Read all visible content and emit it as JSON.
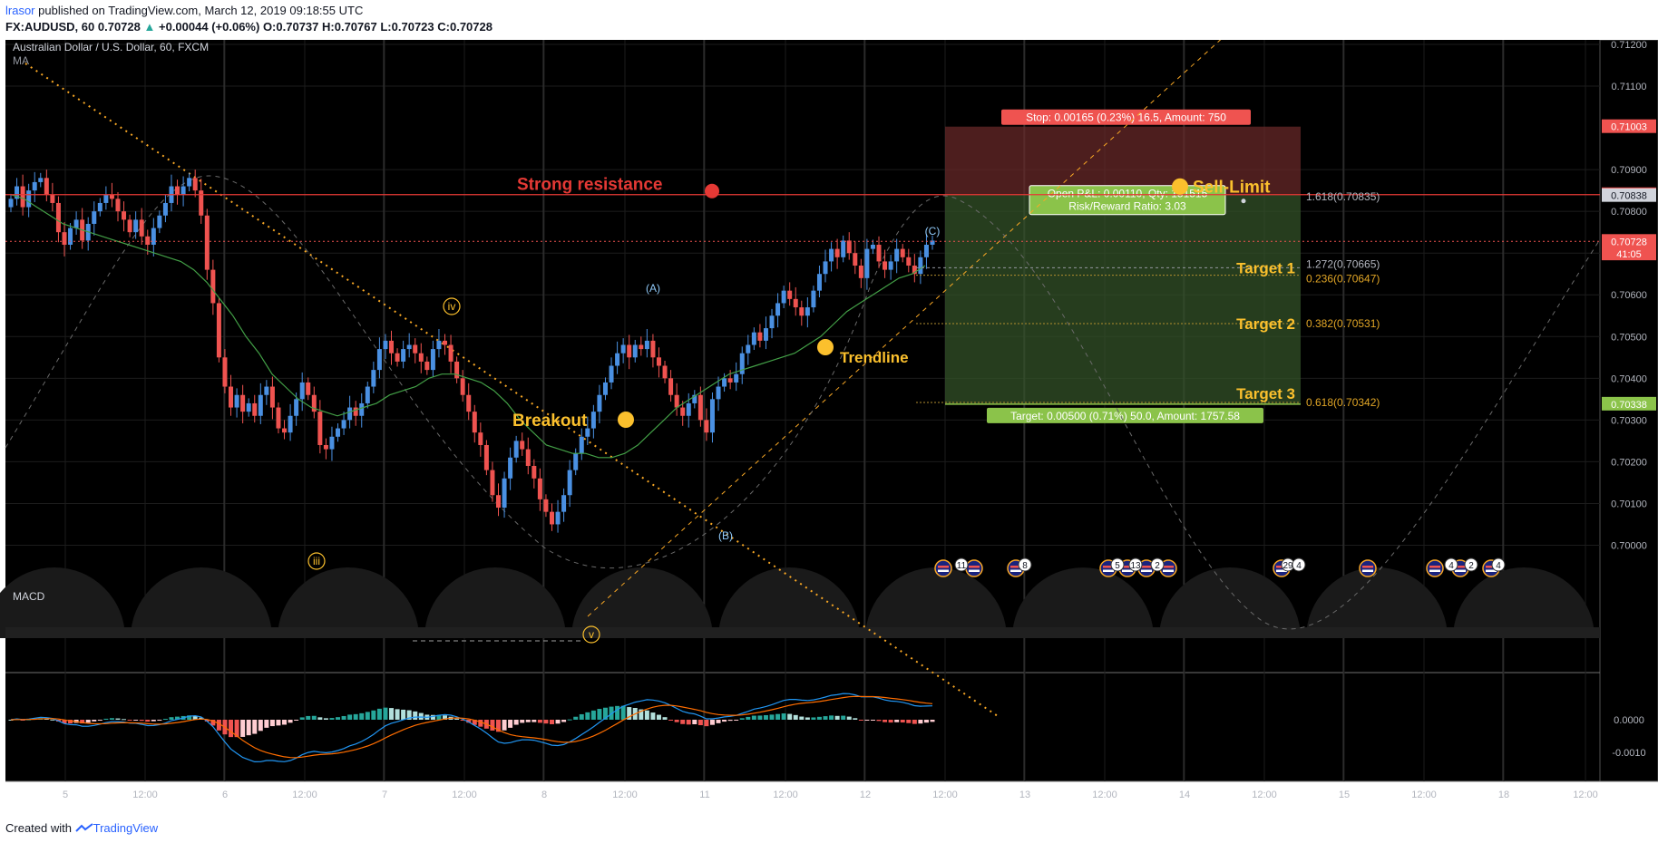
{
  "header": {
    "author": "lrasor",
    "published_text": " published on TradingView.com, March 12, 2019 09:18:55 UTC",
    "symbol": "FX:AUDUSD, 60",
    "price": "0.70728",
    "change": "+0.00044 (+0.06%)",
    "ohlc": [
      {
        "label": "O:",
        "value": "0.70737"
      },
      {
        "label": "H:",
        "value": "0.70767"
      },
      {
        "label": "L:",
        "value": "0.70723"
      },
      {
        "label": "C:",
        "value": "0.70728"
      }
    ]
  },
  "footer": {
    "created_with": "Created with",
    "brand": "TradingView"
  },
  "chart_data": {
    "type": "candlestick",
    "legend": "Australian Dollar / U.S. Dollar, 60, FXCM",
    "indicator": "MA",
    "ylim": [
      0.6993,
      0.7123
    ],
    "price_ticks": [
      "0.71200",
      "0.71100",
      "0.70900",
      "0.70800",
      "0.70700",
      "0.70600",
      "0.70500",
      "0.70400",
      "0.70300",
      "0.70200",
      "0.70100",
      "0.70000"
    ],
    "x_ticks": [
      "5",
      "12:00",
      "6",
      "12:00",
      "7",
      "12:00",
      "8",
      "12:00",
      "11",
      "12:00",
      "12",
      "12:00",
      "13",
      "12:00",
      "14",
      "12:00",
      "15",
      "12:00",
      "18",
      "12:00"
    ],
    "price_badges": [
      {
        "text": "0.71003",
        "y": 0.71003,
        "color": "#ef5350"
      },
      {
        "text": "0.70840",
        "y": 0.7084,
        "color": "#e53935"
      },
      {
        "text": "0.70838",
        "y": 0.70838,
        "color": "#d1d4dc"
      },
      {
        "text": "0.70728",
        "y": 0.70728,
        "color": "#ef5350"
      },
      {
        "text": "41:05",
        "y": 0.70698,
        "color": "#ef5350"
      },
      {
        "text": "0.70338",
        "y": 0.70338,
        "color": "#8bc34a"
      }
    ],
    "close_series": [
      0.7083,
      0.7086,
      0.7081,
      0.7085,
      0.7087,
      0.7088,
      0.7084,
      0.7082,
      0.7075,
      0.7072,
      0.7076,
      0.7078,
      0.7073,
      0.7077,
      0.708,
      0.7082,
      0.7084,
      0.7083,
      0.708,
      0.7078,
      0.7075,
      0.7078,
      0.7074,
      0.7072,
      0.7076,
      0.7079,
      0.7082,
      0.7086,
      0.7084,
      0.7086,
      0.7088,
      0.7085,
      0.7079,
      0.7066,
      0.7058,
      0.7045,
      0.7038,
      0.7033,
      0.7036,
      0.7032,
      0.7034,
      0.7031,
      0.7036,
      0.7038,
      0.7033,
      0.7028,
      0.7027,
      0.7031,
      0.7035,
      0.7039,
      0.7036,
      0.7032,
      0.7024,
      0.7023,
      0.7026,
      0.7028,
      0.703,
      0.7033,
      0.7031,
      0.7034,
      0.7038,
      0.7042,
      0.7047,
      0.7049,
      0.7046,
      0.7044,
      0.7047,
      0.7048,
      0.7046,
      0.7044,
      0.7042,
      0.7047,
      0.7049,
      0.7048,
      0.7044,
      0.704,
      0.7036,
      0.7032,
      0.7027,
      0.7024,
      0.7018,
      0.7012,
      0.7009,
      0.7016,
      0.7021,
      0.7025,
      0.7023,
      0.7019,
      0.7016,
      0.7011,
      0.7008,
      0.7005,
      0.7008,
      0.7012,
      0.7018,
      0.7022,
      0.7026,
      0.7028,
      0.7032,
      0.7036,
      0.7039,
      0.7043,
      0.7046,
      0.7048,
      0.7045,
      0.7048,
      0.7047,
      0.7049,
      0.7045,
      0.7043,
      0.704,
      0.7036,
      0.7033,
      0.7031,
      0.7034,
      0.7036,
      0.703,
      0.7027,
      0.7035,
      0.7038,
      0.704,
      0.7039,
      0.7041,
      0.7046,
      0.7048,
      0.7051,
      0.7049,
      0.7052,
      0.7055,
      0.7058,
      0.7061,
      0.7059,
      0.7057,
      0.7055,
      0.7057,
      0.7061,
      0.7065,
      0.7068,
      0.7071,
      0.7069,
      0.7073,
      0.707,
      0.7067,
      0.7064,
      0.7071,
      0.7072,
      0.7068,
      0.7066,
      0.7068,
      0.7071,
      0.7069,
      0.7067,
      0.7065,
      0.7069,
      0.7072,
      0.7073
    ],
    "ma_series": [
      0.7084,
      0.7083,
      0.7081,
      0.7079,
      0.7077,
      0.7076,
      0.7075,
      0.7074,
      0.7073,
      0.7072,
      0.7071,
      0.707,
      0.7069,
      0.7068,
      0.7066,
      0.7063,
      0.7059,
      0.7055,
      0.705,
      0.7046,
      0.7041,
      0.7038,
      0.7035,
      0.7033,
      0.7032,
      0.7031,
      0.7032,
      0.7033,
      0.7034,
      0.7036,
      0.7037,
      0.7038,
      0.704,
      0.7041,
      0.7041,
      0.704,
      0.7039,
      0.7037,
      0.7034,
      0.703,
      0.7027,
      0.7024,
      0.7023,
      0.7022,
      0.7022,
      0.7021,
      0.7021,
      0.7022,
      0.7024,
      0.7027,
      0.703,
      0.7033,
      0.7035,
      0.7037,
      0.7039,
      0.7041,
      0.7042,
      0.7043,
      0.7044,
      0.7045,
      0.7046,
      0.7048,
      0.705,
      0.7053,
      0.7056,
      0.7058,
      0.706,
      0.7062,
      0.7064,
      0.7065,
      0.7067
    ],
    "macd_ticks": [
      "0.0000",
      "-0.0010"
    ],
    "annotations": [
      {
        "text": "Strong resistance",
        "price": 0.7084
      },
      {
        "text": "Sell-Limit",
        "price": 0.7084
      },
      {
        "text": "Breakout"
      },
      {
        "text": "Trendline"
      },
      {
        "text": "Target 1",
        "price": 0.70665
      },
      {
        "text": "Target 2",
        "price": 0.70531
      },
      {
        "text": "Target 3",
        "price": 0.70342
      }
    ],
    "fib_levels": [
      {
        "text": "1.618(0.70835)",
        "price": 0.70835
      },
      {
        "text": "1.272(0.70665)",
        "price": 0.70665
      },
      {
        "text": "0.236(0.70647)",
        "price": 0.70647
      },
      {
        "text": "0.382(0.70531)",
        "price": 0.70531
      },
      {
        "text": "0.618(0.70342)",
        "price": 0.70342
      }
    ],
    "wave_labels": [
      "iii",
      "iv",
      "v",
      "(A)",
      "(B)",
      "(C)"
    ],
    "position": {
      "stop": "Stop: 0.00165 (0.23%) 16.5, Amount: 750",
      "target": "Target: 0.00500 (0.71%) 50.0, Amount: 1757.58",
      "pnl": "Open P&L: 0.00110, Qty: 151515",
      "rr": "Risk/Reward Ratio: 3.03",
      "entry": 0.7084,
      "stop_price": 0.71003,
      "target_price": 0.70338
    },
    "event_counts": [
      "11",
      "8",
      "5",
      "13",
      "2",
      "29",
      "4",
      "4",
      "2",
      "4"
    ]
  }
}
